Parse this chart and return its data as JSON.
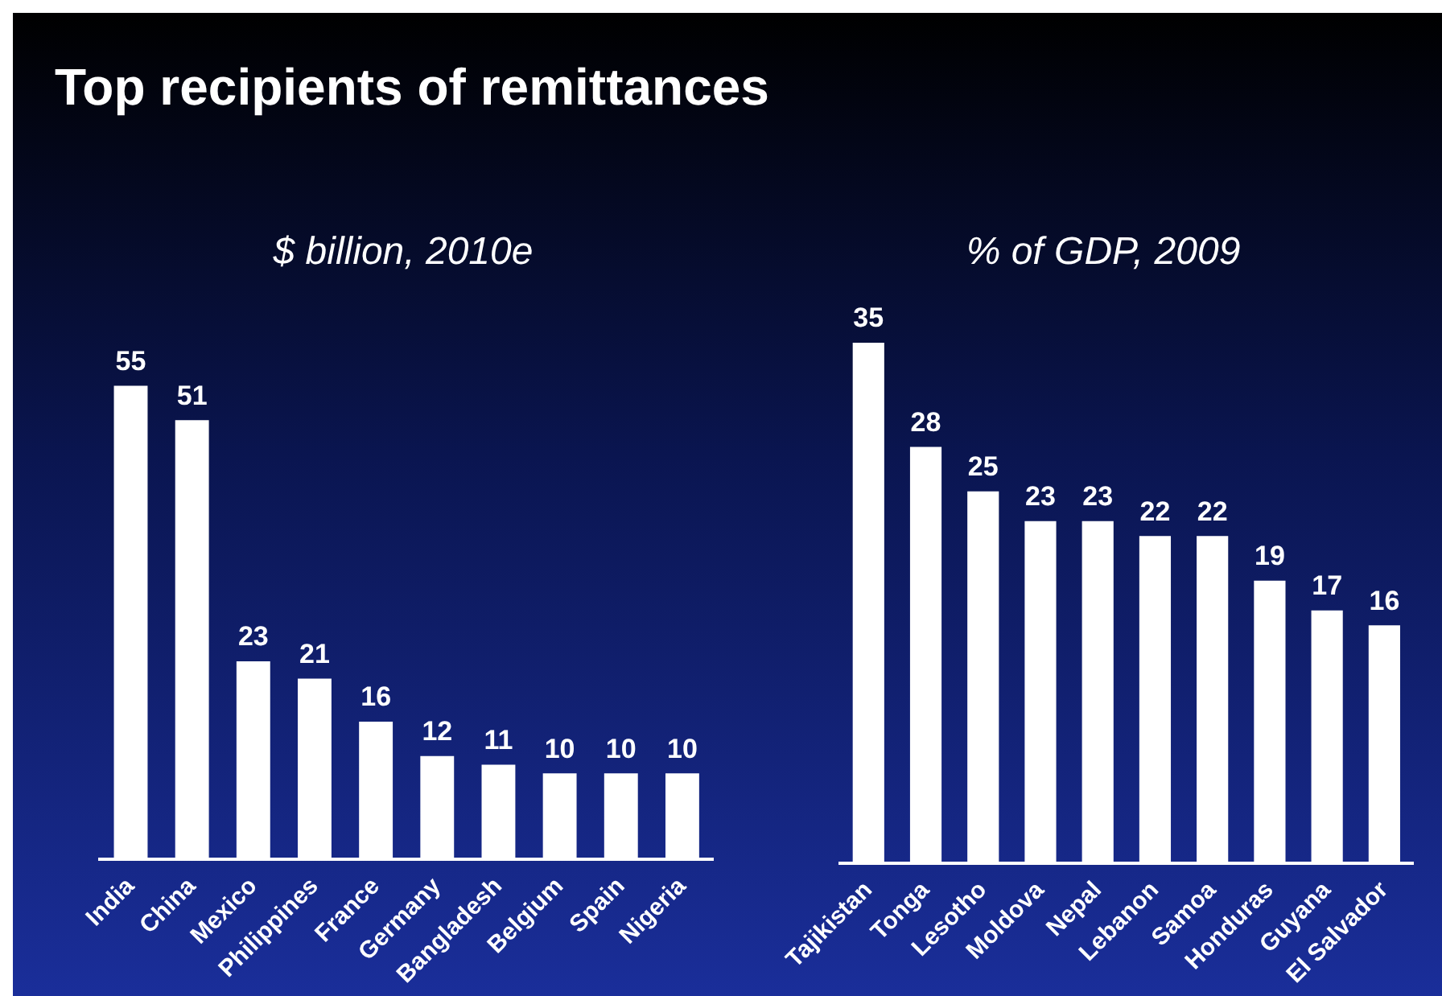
{
  "chart_data": [
    {
      "type": "bar",
      "title": "Top recipients of remittances",
      "subtitle": "$ billion, 2010e",
      "categories": [
        "India",
        "China",
        "Mexico",
        "Philippines",
        "France",
        "Germany",
        "Bangladesh",
        "Belgium",
        "Spain",
        "Nigeria"
      ],
      "values": [
        55,
        51,
        23,
        21,
        16,
        12,
        11,
        10,
        10,
        10
      ],
      "color": "#ffffff",
      "data_labels": true
    },
    {
      "type": "bar",
      "subtitle": "% of GDP, 2009",
      "categories": [
        "Tajikistan",
        "Tonga",
        "Lesotho",
        "Moldova",
        "Nepal",
        "Lebanon",
        "Samoa",
        "Honduras",
        "Guyana",
        "El Salvador"
      ],
      "values": [
        35,
        28,
        25,
        23,
        23,
        22,
        22,
        19,
        17,
        16
      ],
      "color": "#ffffff",
      "data_labels": true
    }
  ]
}
